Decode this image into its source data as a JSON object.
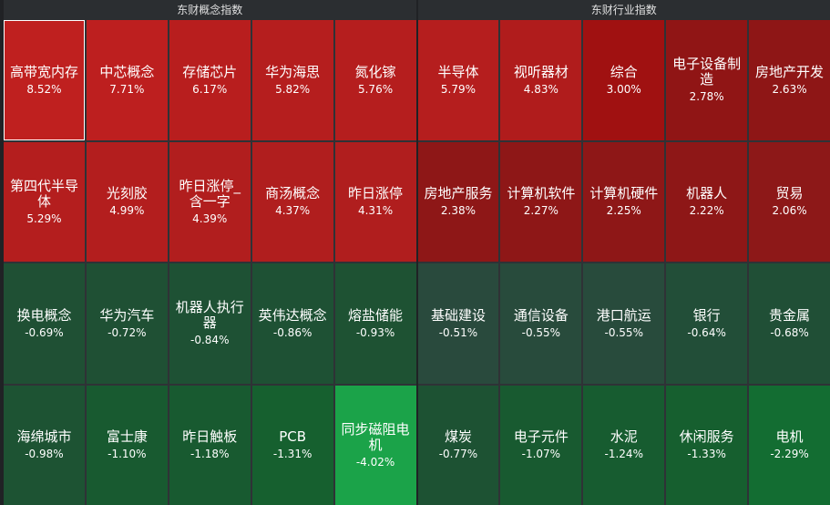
{
  "panels": [
    {
      "title": "东财概念指数",
      "tiles": [
        {
          "name": "高带宽内存",
          "change": "8.52%",
          "color": "#bf201f",
          "selected": true
        },
        {
          "name": "中芯概念",
          "change": "7.71%",
          "color": "#bd1f1f"
        },
        {
          "name": "存储芯片",
          "change": "6.17%",
          "color": "#b81e1e"
        },
        {
          "name": "华为海思",
          "change": "5.82%",
          "color": "#b51e1e"
        },
        {
          "name": "氮化镓",
          "change": "5.76%",
          "color": "#b51e1e"
        },
        {
          "name": "第四代半导体",
          "change": "5.29%",
          "color": "#b41e1e"
        },
        {
          "name": "光刻胶",
          "change": "4.99%",
          "color": "#b31e1e"
        },
        {
          "name": "昨日涨停_含一字",
          "change": "4.39%",
          "color": "#b11e1e"
        },
        {
          "name": "商汤概念",
          "change": "4.37%",
          "color": "#b01e1e"
        },
        {
          "name": "昨日涨停",
          "change": "4.31%",
          "color": "#b01e1e"
        },
        {
          "name": "换电概念",
          "change": "-0.69%",
          "color": "#1f5034"
        },
        {
          "name": "华为汽车",
          "change": "-0.72%",
          "color": "#1f5034"
        },
        {
          "name": "机器人执行器",
          "change": "-0.84%",
          "color": "#1e5134"
        },
        {
          "name": "英伟达概念",
          "change": "-0.86%",
          "color": "#1e5134"
        },
        {
          "name": "熔盐储能",
          "change": "-0.93%",
          "color": "#1e5233"
        },
        {
          "name": "海绵城市",
          "change": "-0.98%",
          "color": "#1d5333"
        },
        {
          "name": "富士康",
          "change": "-1.10%",
          "color": "#185a30"
        },
        {
          "name": "昨日触板",
          "change": "-1.18%",
          "color": "#185a30"
        },
        {
          "name": "PCB",
          "change": "-1.31%",
          "color": "#16602f"
        },
        {
          "name": "同步磁阻电机",
          "change": "-4.02%",
          "color": "#1ba349"
        }
      ]
    },
    {
      "title": "东财行业指数",
      "tiles": [
        {
          "name": "半导体",
          "change": "5.79%",
          "color": "#b51e1e"
        },
        {
          "name": "视听器材",
          "change": "4.83%",
          "color": "#b01c1c"
        },
        {
          "name": "综合",
          "change": "3.00%",
          "color": "#a01111"
        },
        {
          "name": "电子设备制造",
          "change": "2.78%",
          "color": "#901515"
        },
        {
          "name": "房地产开发",
          "change": "2.63%",
          "color": "#8e1616"
        },
        {
          "name": "房地产服务",
          "change": "2.38%",
          "color": "#8e1717"
        },
        {
          "name": "计算机软件",
          "change": "2.27%",
          "color": "#8e1717"
        },
        {
          "name": "计算机硬件",
          "change": "2.25%",
          "color": "#8e1717"
        },
        {
          "name": "机器人",
          "change": "2.22%",
          "color": "#8e1717"
        },
        {
          "name": "贸易",
          "change": "2.06%",
          "color": "#8d1818"
        },
        {
          "name": "基础建设",
          "change": "-0.51%",
          "color": "#294a3d"
        },
        {
          "name": "通信设备",
          "change": "-0.55%",
          "color": "#284b3c"
        },
        {
          "name": "港口航运",
          "change": "-0.55%",
          "color": "#284b3c"
        },
        {
          "name": "银行",
          "change": "-0.64%",
          "color": "#224e38"
        },
        {
          "name": "贵金属",
          "change": "-0.68%",
          "color": "#204f36"
        },
        {
          "name": "煤炭",
          "change": "-0.77%",
          "color": "#1d5233"
        },
        {
          "name": "电子元件",
          "change": "-1.07%",
          "color": "#185a30"
        },
        {
          "name": "水泥",
          "change": "-1.24%",
          "color": "#175c30"
        },
        {
          "name": "休闲服务",
          "change": "-1.33%",
          "color": "#165f2f"
        },
        {
          "name": "电机",
          "change": "-2.29%",
          "color": "#136d32"
        }
      ]
    }
  ]
}
